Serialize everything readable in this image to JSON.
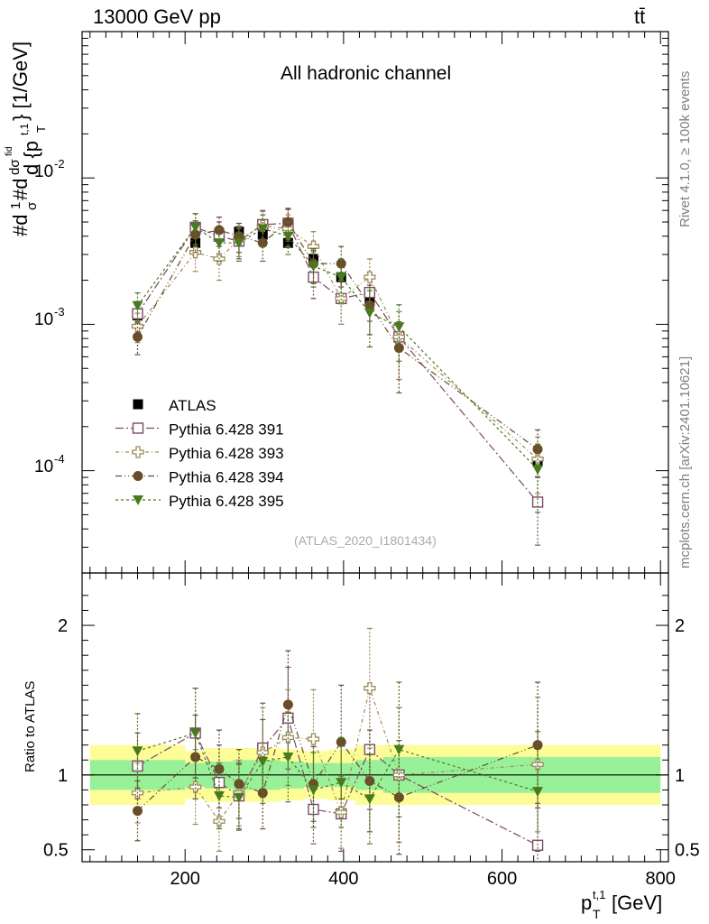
{
  "header": {
    "left": "13000 GeV pp",
    "right": "tt̄"
  },
  "side_labels": {
    "rivet": "Rivet 4.1.0, ≥ 100k events",
    "mcplots": "mcplots.cern.ch [arXiv:2401.10621]"
  },
  "colors": {
    "atlas": "#000000",
    "p391": "#7b4b68",
    "p393": "#9c8a5a",
    "p394": "#6b4c2a",
    "p395": "#4a7a1e",
    "band_inner": "#98f098",
    "band_outer": "#fdfd98"
  },
  "chart_data": [
    {
      "id": "main",
      "type": "scatter",
      "title": "All hadronic channel",
      "analysis_label": "(ATLAS_2020_I1801434)",
      "ylabel": "#d¹⁄σ#d dσᶜʰᵈ ⁄ d {p_T^{t,1}} [1/GeV]",
      "ylabel_parts": {
        "prefix": "#d",
        "frac1": "1",
        "sigma": "σ",
        "mid": "#d",
        "dsig": "dσ",
        "sup": "fid",
        "dd": "d {p",
        "sub": "T",
        "sup2": "t,1",
        "end": "} [1/GeV]"
      },
      "yscale": "log",
      "ylim": [
        2e-05,
        0.1
      ],
      "xlim": [
        70,
        810
      ],
      "ytick_labels": {
        "e2": "10",
        "e2exp": "-2",
        "e3": "10",
        "e3exp": "-3",
        "e4": "10",
        "e4exp": "-4"
      },
      "x": [
        140,
        213,
        243,
        268,
        298,
        330,
        362,
        397,
        433,
        470,
        645
      ],
      "series": [
        {
          "name": "ATLAS",
          "marker": "filled-square",
          "values": [
            0.00115,
            0.0036,
            0.0042,
            0.0043,
            0.0041,
            0.0036,
            0.0028,
            0.0021,
            0.00145,
            0.00082,
            0.000115
          ],
          "errors": [
            0.00012,
            0.0004,
            0.0004,
            0.0004,
            0.0004,
            0.0003,
            0.00025,
            0.0002,
            0.00015,
            0.0001,
            2e-05
          ]
        },
        {
          "name": "Pythia 6.428 391",
          "marker": "open-square",
          "values": [
            0.00118,
            0.0046,
            0.004,
            0.0037,
            0.0048,
            0.0049,
            0.0021,
            0.0015,
            0.00165,
            0.00082,
            6.1e-05
          ],
          "errors": [
            0.00025,
            0.0011,
            0.001,
            0.0009,
            0.0012,
            0.0012,
            0.0006,
            0.0005,
            0.0006,
            0.0004,
            3e-05
          ]
        },
        {
          "name": "Pythia 6.428 393",
          "marker": "open-cross",
          "values": [
            0.00097,
            0.0031,
            0.0028,
            0.0038,
            0.0047,
            0.0045,
            0.0034,
            0.0015,
            0.0021,
            0.00082,
            0.00012
          ],
          "errors": [
            0.00022,
            0.0008,
            0.0008,
            0.0009,
            0.0012,
            0.0011,
            0.0009,
            0.0005,
            0.0007,
            0.0004,
            5e-05
          ]
        },
        {
          "name": "Pythia 6.428 394",
          "marker": "filled-circle",
          "values": [
            0.00082,
            0.0041,
            0.0044,
            0.004,
            0.0036,
            0.005,
            0.0026,
            0.0026,
            0.00135,
            0.00069,
            0.00014
          ],
          "errors": [
            0.0002,
            0.001,
            0.001,
            0.0009,
            0.0009,
            0.0012,
            0.0007,
            0.0008,
            0.0005,
            0.00035,
            5e-05
          ]
        },
        {
          "name": "Pythia 6.428 395",
          "marker": "filled-triangle-down",
          "values": [
            0.00134,
            0.0046,
            0.0036,
            0.0036,
            0.0045,
            0.004,
            0.0025,
            0.0021,
            0.0012,
            0.00096,
            0.000102
          ],
          "errors": [
            0.0003,
            0.0011,
            0.0009,
            0.0009,
            0.0011,
            0.001,
            0.0007,
            0.0007,
            0.0005,
            0.0004,
            5e-05
          ]
        }
      ],
      "legend": [
        "ATLAS",
        "Pythia 6.428 391",
        "Pythia 6.428 393",
        "Pythia 6.428 394",
        "Pythia 6.428 395"
      ],
      "legend_placement": "lower-left"
    },
    {
      "id": "ratio",
      "type": "scatter",
      "ylabel": "Ratio to ATLAS",
      "xlabel_main": "p",
      "xlabel_sub": "T",
      "xlabel_sup": "t,1",
      "xlabel_unit": " [GeV]",
      "ylim": [
        0.42,
        2.35
      ],
      "xlim": [
        70,
        810
      ],
      "yticks": [
        0.5,
        1,
        2
      ],
      "ytick_labels": [
        "0.5",
        "1",
        "2"
      ],
      "xticks": [
        200,
        400,
        600,
        800
      ],
      "xtick_labels": [
        "200",
        "400",
        "600",
        "800"
      ],
      "bins": [
        [
          80,
          200
        ],
        [
          200,
          225
        ],
        [
          225,
          260
        ],
        [
          260,
          280
        ],
        [
          280,
          320
        ],
        [
          320,
          350
        ],
        [
          350,
          380
        ],
        [
          380,
          415
        ],
        [
          415,
          450
        ],
        [
          450,
          495
        ],
        [
          495,
          800
        ]
      ],
      "band_inner": [
        0.1,
        0.08,
        0.09,
        0.1,
        0.1,
        0.09,
        0.08,
        0.08,
        0.1,
        0.12,
        0.12
      ],
      "band_outer": [
        0.2,
        0.16,
        0.18,
        0.18,
        0.18,
        0.17,
        0.16,
        0.17,
        0.2,
        0.2,
        0.2
      ],
      "x": [
        140,
        213,
        243,
        268,
        298,
        330,
        362,
        397,
        433,
        470,
        645
      ],
      "series": [
        {
          "name": "Pythia 6.428 391",
          "values": [
            1.06,
            1.28,
            0.95,
            0.86,
            1.18,
            1.38,
            0.77,
            0.74,
            1.17,
            1.0,
            0.53
          ],
          "errors": [
            0.22,
            0.3,
            0.25,
            0.22,
            0.3,
            0.34,
            0.23,
            0.25,
            0.4,
            0.45,
            0.28
          ]
        },
        {
          "name": "Pythia 6.428 393",
          "values": [
            0.88,
            0.92,
            0.69,
            0.88,
            1.15,
            1.25,
            1.24,
            0.75,
            1.58,
            1.0,
            1.07
          ],
          "errors": [
            0.2,
            0.25,
            0.2,
            0.22,
            0.3,
            0.32,
            0.33,
            0.24,
            0.4,
            0.45,
            0.45
          ]
        },
        {
          "name": "Pythia 6.428 394",
          "values": [
            0.76,
            1.12,
            1.04,
            0.94,
            0.88,
            1.47,
            0.94,
            1.22,
            0.96,
            0.85,
            1.2
          ],
          "errors": [
            0.2,
            0.28,
            0.26,
            0.23,
            0.24,
            0.36,
            0.25,
            0.38,
            0.34,
            0.38,
            0.42
          ]
        },
        {
          "name": "Pythia 6.428 395",
          "values": [
            1.16,
            1.28,
            0.86,
            0.85,
            1.09,
            1.12,
            0.9,
            0.95,
            0.84,
            1.17,
            0.89
          ],
          "errors": [
            0.25,
            0.3,
            0.22,
            0.22,
            0.28,
            0.3,
            0.25,
            0.3,
            0.3,
            0.45,
            0.4
          ]
        }
      ]
    }
  ]
}
